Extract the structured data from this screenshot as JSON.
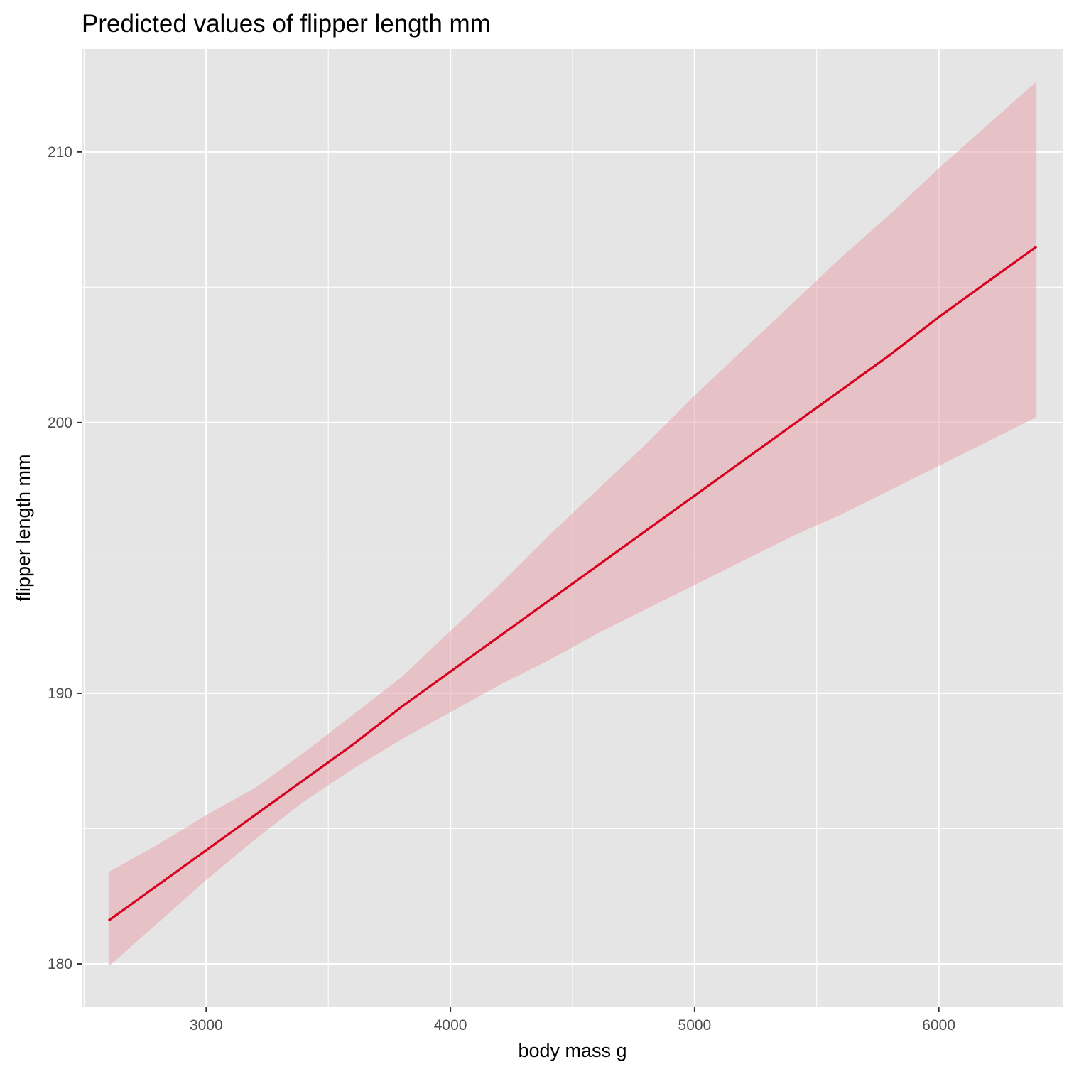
{
  "chart_data": {
    "type": "line",
    "title": "Predicted values of flipper length mm",
    "xlabel": "body mass g",
    "ylabel": "flipper length mm",
    "xlim": [
      2490,
      6510
    ],
    "ylim": [
      178.4,
      213.8
    ],
    "x_ticks": [
      3000,
      4000,
      5000,
      6000
    ],
    "x_minor_ticks": [
      2500,
      3500,
      4500,
      5500,
      6500
    ],
    "y_ticks": [
      180,
      190,
      200,
      210
    ],
    "y_minor_ticks": [
      185,
      195,
      205
    ],
    "grid": true,
    "legend": "none",
    "series": [
      {
        "color": "#d7001e",
        "x": [
          2600,
          2800,
          3000,
          3200,
          3400,
          3600,
          3800,
          4000,
          4200,
          4400,
          4600,
          4800,
          5000,
          5200,
          5400,
          5600,
          5800,
          6000,
          6200,
          6400
        ],
        "y": [
          181.6,
          182.9,
          184.2,
          185.5,
          186.8,
          188.1,
          189.5,
          190.8,
          192.1,
          193.4,
          194.7,
          196.0,
          197.3,
          198.6,
          199.9,
          201.2,
          202.5,
          203.9,
          205.2,
          206.5
        ],
        "ci_lower": [
          179.9,
          181.5,
          183.1,
          184.6,
          186.0,
          187.2,
          188.3,
          189.3,
          190.3,
          191.2,
          192.2,
          193.1,
          194.0,
          194.9,
          195.8,
          196.6,
          197.5,
          198.4,
          199.3,
          200.2
        ],
        "ci_upper": [
          183.4,
          184.4,
          185.5,
          186.5,
          187.8,
          189.2,
          190.6,
          192.3,
          194.0,
          195.8,
          197.5,
          199.2,
          201.0,
          202.7,
          204.4,
          206.1,
          207.7,
          209.4,
          211.0,
          212.6
        ]
      }
    ],
    "ci_fill_color": "#e8a6ae"
  }
}
